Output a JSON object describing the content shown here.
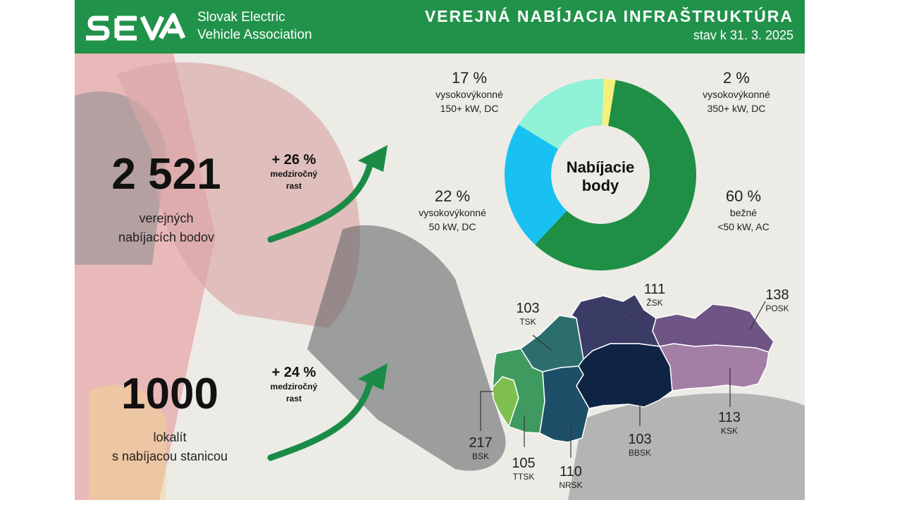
{
  "header": {
    "logo_mark": "SEVA",
    "logo_line1": "Slovak Electric",
    "logo_line2": "Vehicle Association",
    "title": "VEREJNÁ NABÍJACIA INFRAŠTRUKTÚRA",
    "date": "stav k 31. 3. 2025"
  },
  "stats": {
    "points": {
      "value": "2 521",
      "label_line1": "verejných",
      "label_line2": "nabíjacích bodov",
      "growth": "+ 26 %",
      "growth_line1": "medziročný",
      "growth_line2": "rast"
    },
    "locations": {
      "value": "1000",
      "label_line1": "lokalít",
      "label_line2": "s nabíjacou stanicou",
      "growth": "+ 24 %",
      "growth_line1": "medziročný",
      "growth_line2": "rast"
    }
  },
  "chart_data": {
    "type": "pie",
    "center_line1": "Nabíjacie",
    "center_line2": "body",
    "slices": [
      {
        "percent": 2,
        "value_label": "2 %",
        "line1": "vysokovýkonné",
        "line2": "350+ kW, DC",
        "color": "#f5f07c"
      },
      {
        "percent": 60,
        "value_label": "60 %",
        "line1": "bežné",
        "line2": "<50 kW, AC",
        "color": "#1e8f44"
      },
      {
        "percent": 22,
        "value_label": "22 %",
        "line1": "vysokovýkonné",
        "line2": "50 kW, DC",
        "color": "#19c1f2"
      },
      {
        "percent": 17,
        "value_label": "17 %",
        "line1": "vysokovýkonné",
        "line2": "150+ kW, DC",
        "color": "#8ff2d6"
      }
    ]
  },
  "map": {
    "regions": [
      {
        "code": "BSK",
        "value": "217",
        "color": "#7fbf4e"
      },
      {
        "code": "TTSK",
        "value": "105",
        "color": "#3f9a5f"
      },
      {
        "code": "TSK",
        "value": "103",
        "color": "#2c6e6e"
      },
      {
        "code": "NRSK",
        "value": "110",
        "color": "#1e4f68"
      },
      {
        "code": "ŽSK",
        "value": "111",
        "color": "#3b3c66"
      },
      {
        "code": "BBSK",
        "value": "103",
        "color": "#0f2445"
      },
      {
        "code": "POSK",
        "value": "138",
        "color": "#6e5585"
      },
      {
        "code": "KSK",
        "value": "113",
        "color": "#a37ea5"
      }
    ]
  },
  "colors": {
    "header_bg": "#21924a",
    "arrow": "#1a8c47"
  }
}
